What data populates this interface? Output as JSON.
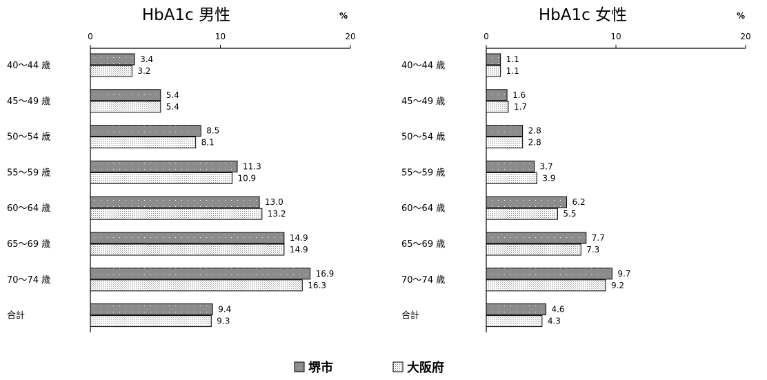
{
  "legend": {
    "items": [
      {
        "label": "堺市",
        "swatch": "dark-dotted"
      },
      {
        "label": "大阪府",
        "swatch": "light-dotted"
      }
    ]
  },
  "chart_data": [
    {
      "type": "bar",
      "orientation": "horizontal",
      "title": "HbA1c  男性",
      "unit": "%",
      "xlim": [
        0,
        20
      ],
      "ticks": [
        0,
        10,
        20
      ],
      "categories": [
        "40～44 歳",
        "45～49 歳",
        "50～54 歳",
        "55～59 歳",
        "60～64 歳",
        "65～69 歳",
        "70～74 歳",
        "合計"
      ],
      "series": [
        {
          "name": "堺市",
          "values": [
            3.4,
            5.4,
            8.5,
            11.3,
            13.0,
            14.9,
            16.9,
            9.4
          ],
          "labels": [
            "3.4",
            "5.4",
            "8.5",
            "11.3",
            "13.0",
            "14.9",
            "16.9",
            "9.4"
          ],
          "color": "#8c8c8c"
        },
        {
          "name": "大阪府",
          "values": [
            3.2,
            5.4,
            8.1,
            10.9,
            13.2,
            14.9,
            16.3,
            9.3
          ],
          "labels": [
            "3.2",
            "5.4",
            "8.1",
            "10.9",
            "13.2",
            "14.9",
            "16.3",
            "9.3"
          ],
          "color": "#e0e0e0"
        }
      ]
    },
    {
      "type": "bar",
      "orientation": "horizontal",
      "title": "HbA1c  女性",
      "unit": "%",
      "xlim": [
        0,
        20
      ],
      "ticks": [
        0,
        10,
        20
      ],
      "categories": [
        "40～44 歳",
        "45～49 歳",
        "50～54 歳",
        "55～59 歳",
        "60～64 歳",
        "65～69 歳",
        "70～74 歳",
        "合計"
      ],
      "series": [
        {
          "name": "堺市",
          "values": [
            1.1,
            1.6,
            2.8,
            3.7,
            6.2,
            7.7,
            9.7,
            4.6
          ],
          "labels": [
            "1.1",
            "1.6",
            "2.8",
            "3.7",
            "6.2",
            "7.7",
            "9.7",
            "4.6"
          ],
          "color": "#8c8c8c"
        },
        {
          "name": "大阪府",
          "values": [
            1.1,
            1.7,
            2.8,
            3.9,
            5.5,
            7.3,
            9.2,
            4.3
          ],
          "labels": [
            "1.1",
            "1.7",
            "2.8",
            "3.9",
            "5.5",
            "7.3",
            "9.2",
            "4.3"
          ],
          "color": "#e0e0e0"
        }
      ]
    }
  ]
}
